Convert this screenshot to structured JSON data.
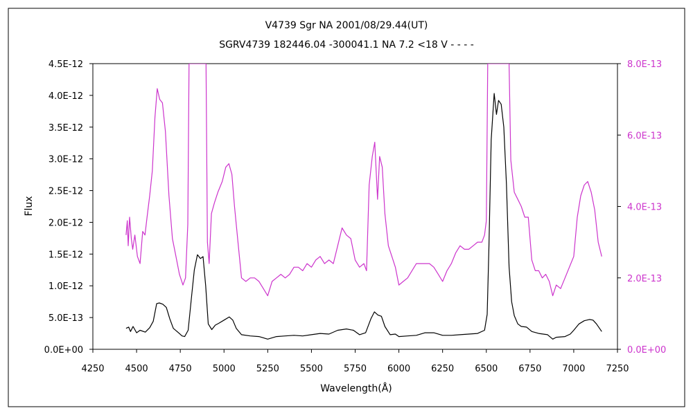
{
  "chart_data": {
    "type": "line",
    "title": "V4739 Sgr    NA    2001/08/29.44(UT)",
    "subtitle": "SGRV4739 182446.04 -300041.1  NA  7.2  <18  V - - - -",
    "xlabel": "Wavelength(Å)",
    "ylabel": "Flux",
    "xlim": [
      4250,
      7250
    ],
    "ylim_left": [
      0,
      4.5e-12
    ],
    "ylim_right": [
      0,
      8e-13
    ],
    "grid": false,
    "legend": "none",
    "x_ticks": [
      "4250",
      "4500",
      "4750",
      "5000",
      "5250",
      "5500",
      "5750",
      "6000",
      "6250",
      "6500",
      "6750",
      "7000",
      "7250"
    ],
    "y_left_ticks": [
      "0.0E+00",
      "5.0E-13",
      "1.0E-12",
      "1.5E-12",
      "2.0E-12",
      "2.5E-12",
      "3.0E-12",
      "3.5E-12",
      "4.0E-12",
      "4.5E-12"
    ],
    "y_right_ticks": [
      "0.0E+00",
      "2.0E-13",
      "4.0E-13",
      "6.0E-13",
      "8.0E-13"
    ],
    "colors": {
      "left_series": "#000000",
      "right_series": "#cc33cc",
      "frame": "#000000"
    },
    "series": [
      {
        "axis": "left",
        "color": "#000000",
        "points": [
          [
            4440,
            3.3e-13
          ],
          [
            4455,
            3.5e-13
          ],
          [
            4465,
            2.8e-13
          ],
          [
            4480,
            3.6e-13
          ],
          [
            4500,
            2.6e-13
          ],
          [
            4520,
            3e-13
          ],
          [
            4550,
            2.7e-13
          ],
          [
            4575,
            3.4e-13
          ],
          [
            4595,
            4.4e-13
          ],
          [
            4615,
            7.2e-13
          ],
          [
            4630,
            7.3e-13
          ],
          [
            4650,
            7.1e-13
          ],
          [
            4670,
            6.6e-13
          ],
          [
            4690,
            4.8e-13
          ],
          [
            4710,
            3.3e-13
          ],
          [
            4740,
            2.6e-13
          ],
          [
            4760,
            2.1e-13
          ],
          [
            4775,
            2e-13
          ],
          [
            4795,
            3e-13
          ],
          [
            4815,
            8.5e-13
          ],
          [
            4830,
            1.25e-12
          ],
          [
            4848,
            1.49e-12
          ],
          [
            4865,
            1.43e-12
          ],
          [
            4880,
            1.46e-12
          ],
          [
            4895,
            1e-12
          ],
          [
            4910,
            4e-13
          ],
          [
            4930,
            3.1e-13
          ],
          [
            4950,
            3.8e-13
          ],
          [
            4970,
            4.1e-13
          ],
          [
            5000,
            4.6e-13
          ],
          [
            5030,
            5.1e-13
          ],
          [
            5050,
            4.6e-13
          ],
          [
            5070,
            3.3e-13
          ],
          [
            5100,
            2.3e-13
          ],
          [
            5150,
            2.1e-13
          ],
          [
            5200,
            2e-13
          ],
          [
            5250,
            1.6e-13
          ],
          [
            5300,
            2e-13
          ],
          [
            5350,
            2.1e-13
          ],
          [
            5400,
            2.2e-13
          ],
          [
            5450,
            2.1e-13
          ],
          [
            5500,
            2.3e-13
          ],
          [
            5550,
            2.5e-13
          ],
          [
            5600,
            2.4e-13
          ],
          [
            5650,
            3e-13
          ],
          [
            5700,
            3.2e-13
          ],
          [
            5740,
            3e-13
          ],
          [
            5775,
            2.3e-13
          ],
          [
            5810,
            2.6e-13
          ],
          [
            5840,
            4.8e-13
          ],
          [
            5860,
            5.9e-13
          ],
          [
            5880,
            5.4e-13
          ],
          [
            5900,
            5.2e-13
          ],
          [
            5920,
            3.6e-13
          ],
          [
            5950,
            2.3e-13
          ],
          [
            5980,
            2.4e-13
          ],
          [
            6000,
            2e-13
          ],
          [
            6050,
            2.1e-13
          ],
          [
            6100,
            2.2e-13
          ],
          [
            6150,
            2.6e-13
          ],
          [
            6200,
            2.6e-13
          ],
          [
            6250,
            2.2e-13
          ],
          [
            6300,
            2.2e-13
          ],
          [
            6350,
            2.3e-13
          ],
          [
            6400,
            2.4e-13
          ],
          [
            6450,
            2.5e-13
          ],
          [
            6490,
            3e-13
          ],
          [
            6505,
            5.5e-13
          ],
          [
            6515,
            1.6e-12
          ],
          [
            6528,
            3.3e-12
          ],
          [
            6545,
            4.03e-12
          ],
          [
            6558,
            3.7e-12
          ],
          [
            6570,
            3.92e-12
          ],
          [
            6585,
            3.86e-12
          ],
          [
            6600,
            3.5e-12
          ],
          [
            6615,
            2.6e-12
          ],
          [
            6630,
            1.3e-12
          ],
          [
            6645,
            7.5e-13
          ],
          [
            6660,
            5.3e-13
          ],
          [
            6680,
            4e-13
          ],
          [
            6700,
            3.6e-13
          ],
          [
            6730,
            3.5e-13
          ],
          [
            6760,
            2.8e-13
          ],
          [
            6800,
            2.5e-13
          ],
          [
            6850,
            2.3e-13
          ],
          [
            6880,
            1.6e-13
          ],
          [
            6900,
            1.9e-13
          ],
          [
            6950,
            2e-13
          ],
          [
            6980,
            2.4e-13
          ],
          [
            7000,
            3e-13
          ],
          [
            7030,
            4e-13
          ],
          [
            7060,
            4.5e-13
          ],
          [
            7090,
            4.7e-13
          ],
          [
            7110,
            4.6e-13
          ],
          [
            7130,
            4e-13
          ],
          [
            7160,
            2.8e-13
          ]
        ]
      },
      {
        "axis": "right",
        "color": "#cc33cc",
        "points": [
          [
            4440,
            3.2e-13
          ],
          [
            4447,
            3.6e-13
          ],
          [
            4452,
            2.9e-13
          ],
          [
            4460,
            3.7e-13
          ],
          [
            4470,
            3.1e-13
          ],
          [
            4478,
            2.8e-13
          ],
          [
            4490,
            3.2e-13
          ],
          [
            4505,
            2.6e-13
          ],
          [
            4520,
            2.4e-13
          ],
          [
            4535,
            3.3e-13
          ],
          [
            4548,
            3.2e-13
          ],
          [
            4560,
            3.7e-13
          ],
          [
            4575,
            4.3e-13
          ],
          [
            4590,
            5e-13
          ],
          [
            4605,
            6.5e-13
          ],
          [
            4618,
            7.3e-13
          ],
          [
            4632,
            7e-13
          ],
          [
            4648,
            6.9e-13
          ],
          [
            4665,
            6.1e-13
          ],
          [
            4685,
            4.3e-13
          ],
          [
            4705,
            3.1e-13
          ],
          [
            4725,
            2.6e-13
          ],
          [
            4745,
            2.1e-13
          ],
          [
            4765,
            1.8e-13
          ],
          [
            4780,
            2e-13
          ],
          [
            4793,
            3.5e-13
          ],
          [
            4800,
            8e-13
          ],
          [
            4897,
            8e-13
          ],
          [
            4905,
            3e-13
          ],
          [
            4915,
            2.4e-13
          ],
          [
            4928,
            3.8e-13
          ],
          [
            4945,
            4.1e-13
          ],
          [
            4965,
            4.4e-13
          ],
          [
            4990,
            4.7e-13
          ],
          [
            5010,
            5.1e-13
          ],
          [
            5028,
            5.2e-13
          ],
          [
            5045,
            4.9e-13
          ],
          [
            5060,
            4e-13
          ],
          [
            5080,
            3e-13
          ],
          [
            5100,
            2e-13
          ],
          [
            5125,
            1.9e-13
          ],
          [
            5150,
            2e-13
          ],
          [
            5175,
            2e-13
          ],
          [
            5200,
            1.9e-13
          ],
          [
            5225,
            1.7e-13
          ],
          [
            5250,
            1.5e-13
          ],
          [
            5275,
            1.9e-13
          ],
          [
            5300,
            2e-13
          ],
          [
            5325,
            2.1e-13
          ],
          [
            5350,
            2e-13
          ],
          [
            5375,
            2.1e-13
          ],
          [
            5400,
            2.3e-13
          ],
          [
            5425,
            2.3e-13
          ],
          [
            5450,
            2.2e-13
          ],
          [
            5475,
            2.4e-13
          ],
          [
            5500,
            2.3e-13
          ],
          [
            5525,
            2.5e-13
          ],
          [
            5550,
            2.6e-13
          ],
          [
            5575,
            2.4e-13
          ],
          [
            5600,
            2.5e-13
          ],
          [
            5625,
            2.4e-13
          ],
          [
            5650,
            2.9e-13
          ],
          [
            5675,
            3.4e-13
          ],
          [
            5700,
            3.2e-13
          ],
          [
            5725,
            3.1e-13
          ],
          [
            5750,
            2.5e-13
          ],
          [
            5775,
            2.3e-13
          ],
          [
            5800,
            2.4e-13
          ],
          [
            5815,
            2.2e-13
          ],
          [
            5830,
            4.6e-13
          ],
          [
            5848,
            5.4e-13
          ],
          [
            5862,
            5.8e-13
          ],
          [
            5878,
            4.2e-13
          ],
          [
            5890,
            5.4e-13
          ],
          [
            5905,
            5.1e-13
          ],
          [
            5920,
            3.8e-13
          ],
          [
            5940,
            2.9e-13
          ],
          [
            5960,
            2.6e-13
          ],
          [
            5980,
            2.3e-13
          ],
          [
            6000,
            1.8e-13
          ],
          [
            6025,
            1.9e-13
          ],
          [
            6050,
            2e-13
          ],
          [
            6075,
            2.2e-13
          ],
          [
            6100,
            2.4e-13
          ],
          [
            6125,
            2.4e-13
          ],
          [
            6150,
            2.4e-13
          ],
          [
            6175,
            2.4e-13
          ],
          [
            6200,
            2.3e-13
          ],
          [
            6225,
            2.1e-13
          ],
          [
            6250,
            1.9e-13
          ],
          [
            6275,
            2.2e-13
          ],
          [
            6300,
            2.4e-13
          ],
          [
            6325,
            2.7e-13
          ],
          [
            6350,
            2.9e-13
          ],
          [
            6375,
            2.8e-13
          ],
          [
            6400,
            2.8e-13
          ],
          [
            6425,
            2.9e-13
          ],
          [
            6450,
            3e-13
          ],
          [
            6475,
            3e-13
          ],
          [
            6490,
            3.2e-13
          ],
          [
            6500,
            3.6e-13
          ],
          [
            6508,
            8e-13
          ],
          [
            6630,
            8e-13
          ],
          [
            6640,
            5.3e-13
          ],
          [
            6660,
            4.4e-13
          ],
          [
            6680,
            4.2e-13
          ],
          [
            6700,
            4e-13
          ],
          [
            6720,
            3.7e-13
          ],
          [
            6740,
            3.7e-13
          ],
          [
            6760,
            2.5e-13
          ],
          [
            6780,
            2.2e-13
          ],
          [
            6800,
            2.2e-13
          ],
          [
            6820,
            2e-13
          ],
          [
            6840,
            2.1e-13
          ],
          [
            6860,
            1.9e-13
          ],
          [
            6880,
            1.5e-13
          ],
          [
            6900,
            1.8e-13
          ],
          [
            6925,
            1.7e-13
          ],
          [
            6950,
            2e-13
          ],
          [
            6975,
            2.3e-13
          ],
          [
            7000,
            2.6e-13
          ],
          [
            7020,
            3.7e-13
          ],
          [
            7040,
            4.3e-13
          ],
          [
            7060,
            4.6e-13
          ],
          [
            7080,
            4.7e-13
          ],
          [
            7100,
            4.4e-13
          ],
          [
            7120,
            3.9e-13
          ],
          [
            7140,
            3e-13
          ],
          [
            7160,
            2.6e-13
          ]
        ]
      }
    ]
  }
}
